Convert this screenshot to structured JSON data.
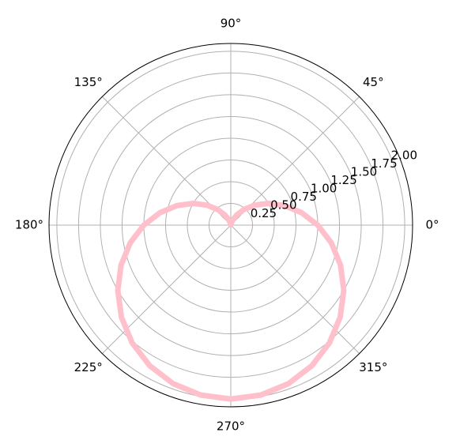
{
  "chart_data": {
    "type": "polar-line",
    "x": [
      0,
      10,
      20,
      30,
      40,
      50,
      60,
      70,
      80,
      90,
      100,
      110,
      120,
      130,
      140,
      150,
      160,
      170,
      180,
      190,
      200,
      210,
      220,
      230,
      240,
      250,
      260,
      270,
      280,
      290,
      300,
      310,
      320,
      330,
      340,
      350,
      360
    ],
    "series": [
      {
        "color": "#ffc0cb",
        "values": [
          1,
          0.8264,
          0.658,
          0.5,
          0.3572,
          0.234,
          0.134,
          0.0603,
          0.0152,
          0,
          0.0152,
          0.0603,
          0.134,
          0.234,
          0.3572,
          0.5,
          0.658,
          0.8264,
          1,
          1.1736,
          1.342,
          1.5,
          1.6428,
          1.766,
          1.866,
          1.9397,
          1.9848,
          2,
          1.9848,
          1.9397,
          1.866,
          1.766,
          1.6428,
          1.5,
          1.342,
          1.1736,
          1
        ]
      }
    ],
    "ylim": [
      0,
      2.09
    ],
    "yticks": [
      {
        "value": 0.25,
        "label": "0.25"
      },
      {
        "value": 0.5,
        "label": "0.50"
      },
      {
        "value": 0.75,
        "label": "0.75"
      },
      {
        "value": 1.0,
        "label": "1.00"
      },
      {
        "value": 1.25,
        "label": "1.25"
      },
      {
        "value": 1.5,
        "label": "1.50"
      },
      {
        "value": 1.75,
        "label": "1.75"
      },
      {
        "value": 2.0,
        "label": "2.00"
      }
    ],
    "xticks": [
      {
        "value": 0,
        "label": "0°"
      },
      {
        "value": 45,
        "label": "45°"
      },
      {
        "value": 90,
        "label": "90°"
      },
      {
        "value": 135,
        "label": "135°"
      },
      {
        "value": 180,
        "label": "180°"
      },
      {
        "value": 225,
        "label": "225°"
      },
      {
        "value": 270,
        "label": "270°"
      },
      {
        "value": 315,
        "label": "315°"
      }
    ],
    "grid": true
  }
}
